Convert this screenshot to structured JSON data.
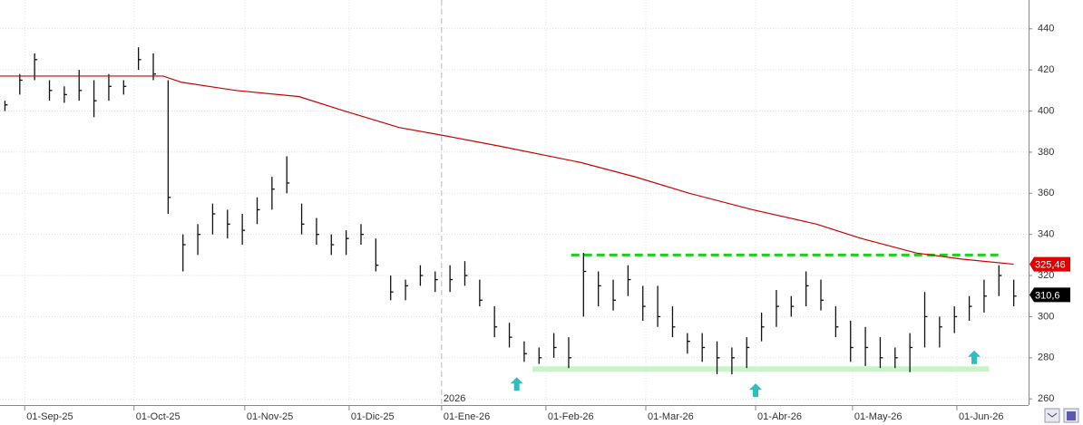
{
  "chart_data": {
    "type": "ohlc",
    "x": [
      -4,
      -1,
      2,
      5,
      8,
      11,
      14,
      17,
      20,
      23,
      26,
      29,
      32,
      35,
      38,
      41,
      44,
      47,
      50,
      53,
      56,
      59,
      62,
      65,
      68,
      71,
      74,
      77,
      80,
      83,
      86,
      89,
      92,
      95,
      98,
      101,
      104,
      107,
      110,
      113,
      116,
      119,
      122,
      125,
      128,
      131,
      134,
      137,
      140,
      143,
      146,
      149,
      152,
      155,
      158,
      161,
      164,
      167,
      170,
      173,
      176,
      179,
      182,
      185,
      188,
      191,
      194,
      197,
      200
    ],
    "series": [
      {
        "name": "high",
        "values": [
          405,
          418,
          428,
          415,
          412,
          420,
          415,
          418,
          415,
          431,
          428,
          415,
          340,
          345,
          355,
          352,
          350,
          358,
          368,
          378,
          355,
          348,
          340,
          342,
          345,
          338,
          320,
          318,
          325,
          322,
          325,
          327,
          318,
          305,
          297,
          288,
          285,
          292,
          290,
          331,
          322,
          318,
          325,
          315,
          315,
          305,
          292,
          292,
          288,
          285,
          290,
          302,
          313,
          310,
          322,
          318,
          305,
          298,
          295,
          290,
          285,
          292,
          312,
          300,
          305,
          310,
          318,
          325,
          318
        ]
      },
      {
        "name": "low",
        "values": [
          400,
          408,
          415,
          405,
          404,
          405,
          397,
          405,
          408,
          420,
          415,
          350,
          322,
          330,
          340,
          338,
          335,
          345,
          352,
          360,
          340,
          335,
          330,
          330,
          335,
          322,
          308,
          308,
          315,
          312,
          312,
          315,
          305,
          290,
          285,
          278,
          277,
          280,
          275,
          300,
          305,
          303,
          310,
          298,
          295,
          290,
          282,
          278,
          272,
          272,
          275,
          288,
          295,
          300,
          305,
          303,
          290,
          278,
          276,
          275,
          275,
          273,
          285,
          285,
          292,
          298,
          302,
          310,
          305
        ]
      },
      {
        "name": "close",
        "values": [
          403,
          415,
          425,
          410,
          408,
          410,
          405,
          412,
          412,
          425,
          418,
          358,
          335,
          340,
          350,
          345,
          342,
          352,
          362,
          365,
          345,
          340,
          335,
          338,
          340,
          325,
          312,
          315,
          320,
          318,
          318,
          320,
          308,
          295,
          290,
          282,
          280,
          285,
          280,
          322,
          315,
          308,
          318,
          305,
          300,
          295,
          288,
          285,
          280,
          280,
          285,
          295,
          305,
          305,
          315,
          308,
          295,
          285,
          285,
          280,
          280,
          285,
          300,
          295,
          300,
          305,
          310,
          320,
          310
        ]
      }
    ],
    "bar_color": "#111111",
    "moving_average": {
      "color": "#cc0000",
      "x": [
        -5,
        28,
        31.7,
        42.7,
        55.5,
        64.7,
        75.7,
        84.9,
        95.9,
        112.4,
        123.4,
        134.4,
        147.2,
        160.1,
        169.2,
        180.2,
        189.4,
        200
      ],
      "values": [
        417,
        417,
        414,
        410,
        407,
        400,
        392,
        388,
        383,
        375,
        368,
        360,
        352,
        345,
        338,
        331,
        328,
        325.5
      ]
    },
    "resistance": {
      "value": 330,
      "x": [
        110.5,
        197
      ],
      "color": "#22cc22"
    },
    "support": {
      "value": 274.5,
      "x": [
        102.7,
        195
      ],
      "color": "#c8f5c8"
    },
    "arrows": {
      "color": "#2bbfbf",
      "x": [
        99.5,
        147.8,
        192
      ],
      "values": [
        267,
        264,
        280
      ]
    },
    "year_marker": {
      "x": 84.3,
      "label": "2026"
    },
    "last_labels": [
      {
        "value": 325.46,
        "label": "325,46",
        "color": "#e00000"
      },
      {
        "value": 310.6,
        "label": "310,6",
        "color": "#000000"
      }
    ],
    "xlim": [
      -5,
      203
    ],
    "ylim": [
      257,
      454
    ],
    "yticks": [
      260,
      280,
      300,
      320,
      340,
      360,
      380,
      400,
      420,
      440
    ],
    "xticks": [
      {
        "value": 0,
        "label": "01-Sep-25"
      },
      {
        "value": 22.1,
        "label": "01-Oct-25"
      },
      {
        "value": 44.5,
        "label": "01-Nov-25"
      },
      {
        "value": 65.6,
        "label": "01-Dic-25"
      },
      {
        "value": 84.3,
        "label": "01-Ene-26"
      },
      {
        "value": 105.4,
        "label": "01-Feb-26"
      },
      {
        "value": 125.6,
        "label": "01-Mar-26"
      },
      {
        "value": 147.8,
        "label": "01-Abr-26"
      },
      {
        "value": 167.4,
        "label": "01-May-26"
      },
      {
        "value": 188.5,
        "label": "01-Jun-26"
      }
    ],
    "grid": true
  }
}
